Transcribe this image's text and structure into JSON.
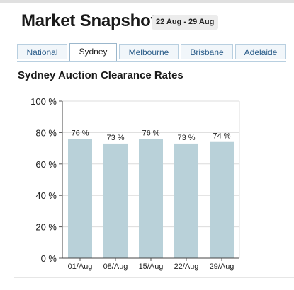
{
  "header": {
    "title": "Market Snapshot",
    "date_range": "22 Aug - 29 Aug"
  },
  "tabs": [
    {
      "label": "National",
      "active": false
    },
    {
      "label": "Sydney",
      "active": true
    },
    {
      "label": "Melbourne",
      "active": false
    },
    {
      "label": "Brisbane",
      "active": false
    },
    {
      "label": "Adelaide",
      "active": false
    }
  ],
  "colors": {
    "bar": "#b9d1d9",
    "tab_text": "#2b5d8a",
    "grid": "#dcdcdc"
  },
  "chart_data": {
    "type": "bar",
    "title": "Sydney Auction Clearance Rates",
    "categories": [
      "01/Aug",
      "08/Aug",
      "15/Aug",
      "22/Aug",
      "29/Aug"
    ],
    "values": [
      76,
      73,
      76,
      73,
      74
    ],
    "data_labels": [
      "76 %",
      "73 %",
      "76 %",
      "73 %",
      "74 %"
    ],
    "yticks": [
      0,
      20,
      40,
      60,
      80,
      100
    ],
    "ytick_labels": [
      "0 %",
      "20 %",
      "40 %",
      "60 %",
      "80 %",
      "100 %"
    ],
    "ylim": [
      0,
      100
    ],
    "xlabel": "",
    "ylabel": "",
    "grid": true
  }
}
